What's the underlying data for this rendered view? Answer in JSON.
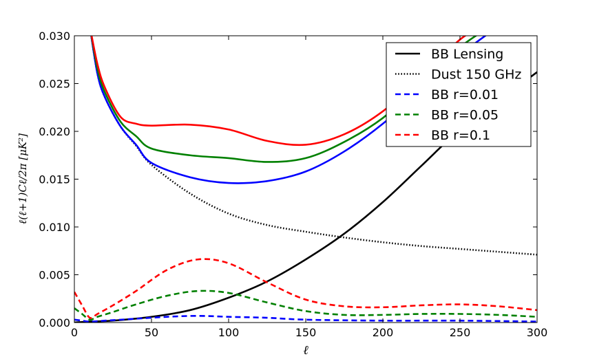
{
  "chart_data": {
    "type": "line",
    "xlabel": "ℓ",
    "ylabel": "ℓ(ℓ+1)Cℓ/2π   [μK²]",
    "xlim": [
      0,
      300
    ],
    "ylim": [
      0,
      0.03
    ],
    "xticks": [
      "0",
      "50",
      "100",
      "150",
      "200",
      "250",
      "300"
    ],
    "yticks": [
      "0.000",
      "0.005",
      "0.010",
      "0.015",
      "0.020",
      "0.025",
      "0.030"
    ],
    "grid": false,
    "legend_position": "top-right",
    "series": [
      {
        "name": "BB Lensing",
        "color": "#000000",
        "style": "solid",
        "x": [
          0,
          10,
          25,
          50,
          75,
          100,
          125,
          150,
          175,
          200,
          225,
          250,
          275,
          300
        ],
        "y": [
          0.0,
          0.0001,
          0.0002,
          0.0006,
          0.0013,
          0.0026,
          0.0043,
          0.0066,
          0.0093,
          0.0126,
          0.0164,
          0.0202,
          0.0232,
          0.0262
        ]
      },
      {
        "name": "Dust 150 GHz",
        "color": "#000000",
        "style": "dotted",
        "x": [
          10,
          15,
          20,
          30,
          40,
          50,
          75,
          100,
          125,
          150,
          175,
          200,
          225,
          250,
          275,
          300
        ],
        "y": [
          0.031,
          0.026,
          0.0235,
          0.0205,
          0.0185,
          0.0165,
          0.0135,
          0.0114,
          0.0102,
          0.0095,
          0.0089,
          0.0084,
          0.008,
          0.0077,
          0.0074,
          0.0071
        ]
      },
      {
        "name": "BB r=0.01",
        "color": "#0000ff",
        "style": "dashed",
        "x": [
          0,
          5,
          10,
          20,
          40,
          60,
          80,
          100,
          125,
          150,
          200,
          250,
          300
        ],
        "y": [
          0.0003,
          0.0002,
          0.0001,
          0.0002,
          0.0004,
          0.0006,
          0.0007,
          0.0006,
          0.0005,
          0.0003,
          0.0002,
          0.0002,
          0.0001
        ]
      },
      {
        "name": "BB r=0.05",
        "color": "#008000",
        "style": "dashed",
        "x": [
          0,
          5,
          10,
          15,
          25,
          40,
          60,
          80,
          100,
          125,
          150,
          175,
          200,
          225,
          250,
          275,
          300
        ],
        "y": [
          0.0015,
          0.0009,
          0.0003,
          0.0006,
          0.0011,
          0.0019,
          0.0028,
          0.0033,
          0.0031,
          0.0021,
          0.0012,
          0.0008,
          0.0008,
          0.0009,
          0.0009,
          0.0008,
          0.0006
        ]
      },
      {
        "name": "BB r=0.1",
        "color": "#ff0000",
        "style": "dashed",
        "x": [
          0,
          5,
          10,
          15,
          25,
          40,
          60,
          80,
          100,
          125,
          150,
          175,
          200,
          225,
          250,
          275,
          300
        ],
        "y": [
          0.0032,
          0.0018,
          0.0005,
          0.0009,
          0.0018,
          0.0033,
          0.0055,
          0.0066,
          0.0062,
          0.0042,
          0.0024,
          0.0017,
          0.0016,
          0.0018,
          0.0019,
          0.0017,
          0.0013
        ]
      },
      {
        "name": "",
        "color": "#0000ff",
        "style": "solid",
        "x": [
          10,
          15,
          20,
          30,
          40,
          50,
          75,
          100,
          125,
          150,
          175,
          200,
          225,
          250,
          275
        ],
        "y": [
          0.031,
          0.026,
          0.0235,
          0.0205,
          0.0186,
          0.0167,
          0.0152,
          0.0146,
          0.0148,
          0.0158,
          0.0179,
          0.0208,
          0.0244,
          0.028,
          0.031
        ]
      },
      {
        "name": "",
        "color": "#008000",
        "style": "solid",
        "x": [
          10,
          15,
          20,
          30,
          40,
          50,
          75,
          100,
          125,
          150,
          175,
          200,
          225,
          250,
          270
        ],
        "y": [
          0.031,
          0.0265,
          0.024,
          0.021,
          0.0195,
          0.0182,
          0.0175,
          0.0172,
          0.0168,
          0.0172,
          0.0189,
          0.0214,
          0.025,
          0.0288,
          0.031
        ]
      },
      {
        "name": "",
        "color": "#ff0000",
        "style": "solid",
        "x": [
          10,
          15,
          20,
          30,
          40,
          50,
          75,
          100,
          125,
          150,
          175,
          200,
          225,
          250,
          265
        ],
        "y": [
          0.031,
          0.027,
          0.0245,
          0.0215,
          0.0208,
          0.0206,
          0.0207,
          0.0202,
          0.019,
          0.0186,
          0.0197,
          0.0221,
          0.0257,
          0.0296,
          0.031
        ]
      }
    ]
  }
}
